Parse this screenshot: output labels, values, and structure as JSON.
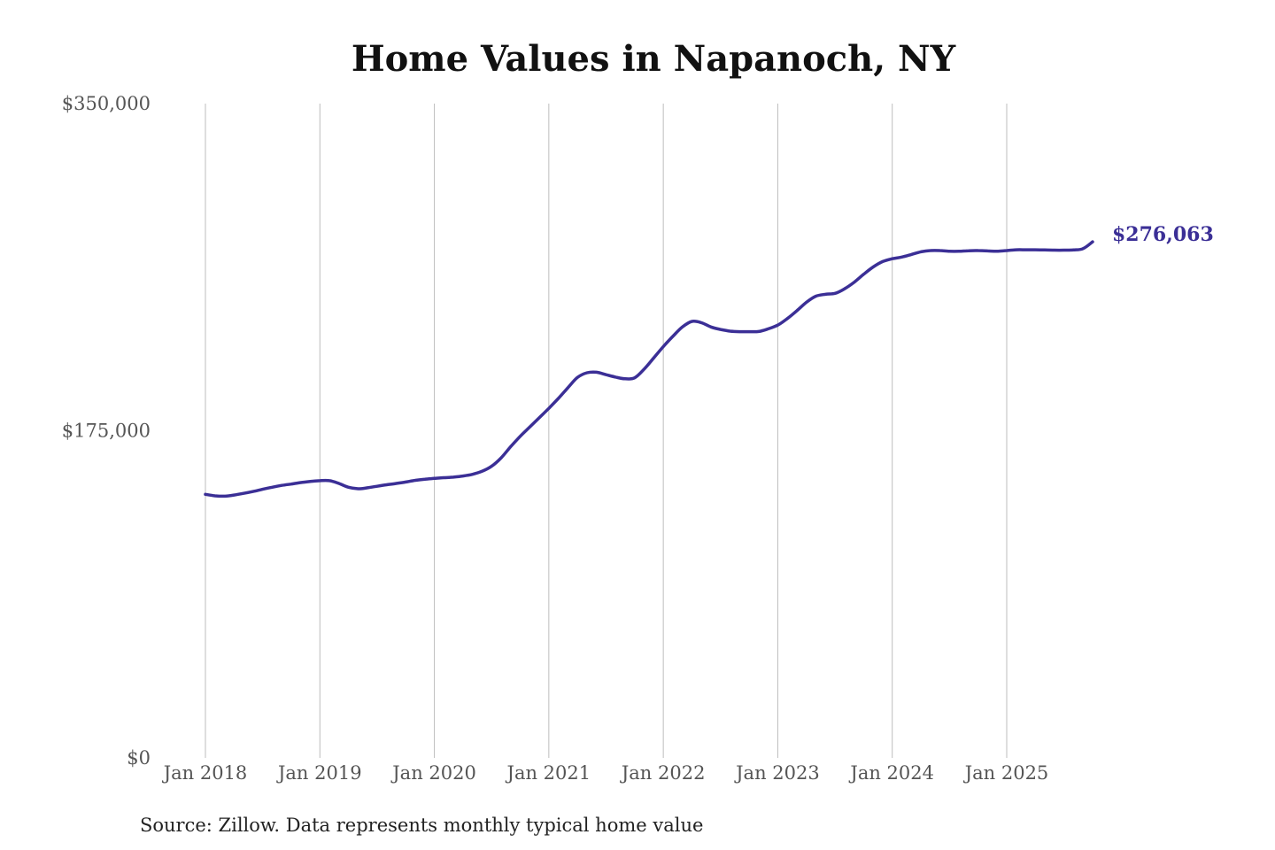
{
  "colors": {
    "series": "#3b2f96",
    "grid": "#bdbdbd",
    "text": "#111111",
    "tick_text": "#555555"
  },
  "chart_data": {
    "type": "line",
    "title": "Home Values in Napanoch, NY",
    "xlabel": "",
    "ylabel": "",
    "ylim": [
      0,
      350000
    ],
    "yticks": [
      {
        "value": 0,
        "label": "$0"
      },
      {
        "value": 175000,
        "label": "$175,000"
      },
      {
        "value": 350000,
        "label": "$350,000"
      }
    ],
    "xticks": [
      {
        "value": "2018-01",
        "label": "Jan 2018"
      },
      {
        "value": "2019-01",
        "label": "Jan 2019"
      },
      {
        "value": "2020-01",
        "label": "Jan 2020"
      },
      {
        "value": "2021-01",
        "label": "Jan 2021"
      },
      {
        "value": "2022-01",
        "label": "Jan 2022"
      },
      {
        "value": "2023-01",
        "label": "Jan 2023"
      },
      {
        "value": "2024-01",
        "label": "Jan 2024"
      },
      {
        "value": "2025-01",
        "label": "Jan 2025"
      }
    ],
    "xlim": [
      "2018-01",
      "2025-10"
    ],
    "grid": {
      "vertical": true,
      "horizontal": false
    },
    "series": [
      {
        "color": "#3b2f96",
        "end_label": "$276,063",
        "x": [
          "2018-01",
          "2018-02",
          "2018-03",
          "2018-04",
          "2018-05",
          "2018-06",
          "2018-07",
          "2018-08",
          "2018-09",
          "2018-10",
          "2018-11",
          "2018-12",
          "2019-01",
          "2019-02",
          "2019-03",
          "2019-04",
          "2019-05",
          "2019-06",
          "2019-07",
          "2019-08",
          "2019-09",
          "2019-10",
          "2019-11",
          "2019-12",
          "2020-01",
          "2020-02",
          "2020-03",
          "2020-04",
          "2020-05",
          "2020-06",
          "2020-07",
          "2020-08",
          "2020-09",
          "2020-10",
          "2020-11",
          "2020-12",
          "2021-01",
          "2021-02",
          "2021-03",
          "2021-04",
          "2021-05",
          "2021-06",
          "2021-07",
          "2021-08",
          "2021-09",
          "2021-10",
          "2021-11",
          "2021-12",
          "2022-01",
          "2022-02",
          "2022-03",
          "2022-04",
          "2022-05",
          "2022-06",
          "2022-07",
          "2022-08",
          "2022-09",
          "2022-10",
          "2022-11",
          "2022-12",
          "2023-01",
          "2023-02",
          "2023-03",
          "2023-04",
          "2023-05",
          "2023-06",
          "2023-07",
          "2023-08",
          "2023-09",
          "2023-10",
          "2023-11",
          "2023-12",
          "2024-01",
          "2024-02",
          "2024-03",
          "2024-04",
          "2024-05",
          "2024-06",
          "2024-07",
          "2024-08",
          "2024-09",
          "2024-10",
          "2024-11",
          "2024-12",
          "2025-01",
          "2025-02",
          "2025-03",
          "2025-04",
          "2025-05",
          "2025-06",
          "2025-07",
          "2025-08",
          "2025-09",
          "2025-10"
        ],
        "values": [
          141000,
          140200,
          140000,
          140600,
          141500,
          142500,
          143700,
          144800,
          145800,
          146500,
          147300,
          147900,
          148300,
          148300,
          146800,
          144800,
          144000,
          144500,
          145300,
          146100,
          146800,
          147600,
          148500,
          149100,
          149500,
          149900,
          150200,
          150800,
          151700,
          153300,
          156000,
          160500,
          166500,
          172000,
          177000,
          182000,
          187000,
          192300,
          198000,
          203500,
          206000,
          206300,
          205000,
          203700,
          202800,
          203300,
          208000,
          214000,
          220000,
          225500,
          230500,
          233500,
          232800,
          230500,
          229200,
          228300,
          228000,
          228000,
          228100,
          229500,
          231500,
          235000,
          239200,
          243700,
          247000,
          248000,
          248500,
          250900,
          254400,
          258700,
          262600,
          265500,
          267000,
          267900,
          269300,
          270700,
          271400,
          271400,
          271000,
          271000,
          271300,
          271400,
          271200,
          271000,
          271400,
          271800,
          271800,
          271800,
          271700,
          271600,
          271600,
          271700,
          272400,
          276063
        ]
      }
    ]
  },
  "source_note": "Source: Zillow. Data represents monthly typical home value"
}
